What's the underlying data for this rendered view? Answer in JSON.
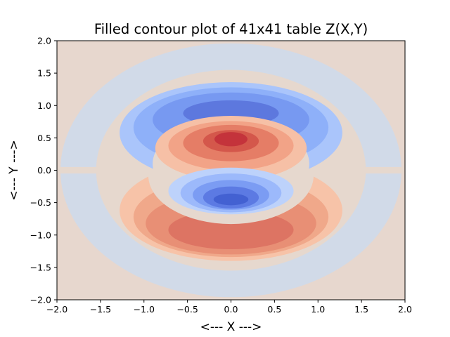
{
  "chart_data": {
    "type": "contourf",
    "title": "Filled contour plot of 41x41 table Z(X,Y)",
    "xlabel": "<--- X --->",
    "ylabel": "<--- Y --->",
    "xlim": [
      -2.0,
      2.0
    ],
    "ylim": [
      -2.0,
      2.0
    ],
    "xticks": [
      -2.0,
      -1.5,
      -1.0,
      -0.5,
      0.0,
      0.5,
      1.0,
      1.5,
      2.0
    ],
    "yticks": [
      -2.0,
      -1.5,
      -1.0,
      -0.5,
      0.0,
      0.5,
      1.0,
      1.5,
      2.0
    ],
    "xtick_labels": [
      "−2.0",
      "−1.5",
      "−1.0",
      "−0.5",
      "0.0",
      "0.5",
      "1.0",
      "1.5",
      "2.0"
    ],
    "ytick_labels": [
      "−2.0",
      "−1.5",
      "−1.0",
      "−0.5",
      "0.0",
      "0.5",
      "1.0",
      "1.5",
      "2.0"
    ],
    "grid_size": [
      41,
      41
    ],
    "colormap": "coolwarm",
    "grid": false,
    "legend": "none",
    "regions": [
      {
        "level": "positive max",
        "color": "#c4333b",
        "x": [
          -0.2,
          0.2
        ],
        "y": [
          0.35,
          0.65
        ]
      },
      {
        "level": "negative min",
        "color": "#4361d2",
        "x": [
          -0.2,
          0.2
        ],
        "y": [
          -0.6,
          -0.35
        ]
      },
      {
        "level": "upper outer band (negative)",
        "color": "#6f90ef",
        "x": [
          -1.3,
          1.3
        ],
        "y": [
          0.55,
          1.2
        ]
      },
      {
        "level": "lower outer band (positive)",
        "color": "#e8876c",
        "x": [
          -1.3,
          1.3
        ],
        "y": [
          -1.25,
          -0.6
        ]
      }
    ]
  }
}
